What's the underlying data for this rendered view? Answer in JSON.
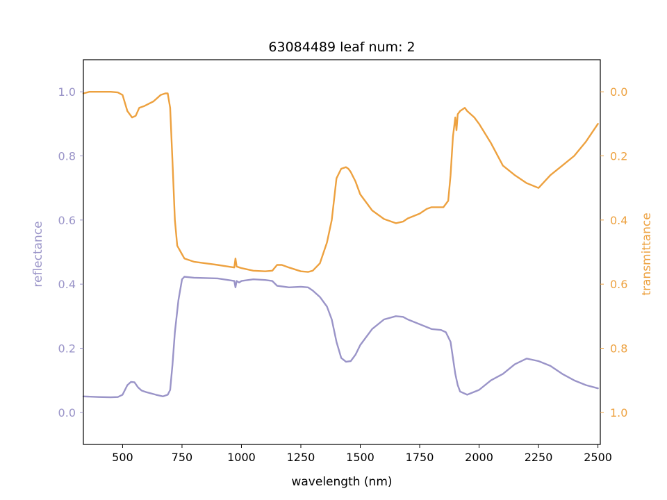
{
  "chart_data": {
    "type": "line",
    "title": "63084489 leaf num: 2",
    "xlabel": "wavelength (nm)",
    "ylabel_left": "reflectance",
    "ylabel_right": "transmittance",
    "xlim": [
      335,
      2510
    ],
    "xticks": [
      500,
      750,
      1000,
      1250,
      1500,
      1750,
      2000,
      2250,
      2500
    ],
    "ylim_left": [
      -0.1,
      1.1
    ],
    "yticks_left": [
      0.0,
      0.2,
      0.4,
      0.6,
      0.8,
      1.0
    ],
    "ylim_right_inverted": [
      1.1,
      -0.1
    ],
    "yticks_right": [
      0.0,
      0.2,
      0.4,
      0.6,
      0.8,
      1.0
    ],
    "grid": false,
    "colors": {
      "reflectance": "#9a94c8",
      "transmittance": "#eda13f",
      "axes": "#000000"
    },
    "series": [
      {
        "axis": "left",
        "x": [
          335,
          400,
          450,
          480,
          500,
          520,
          535,
          550,
          565,
          580,
          600,
          640,
          670,
          690,
          700,
          710,
          720,
          735,
          750,
          760,
          800,
          900,
          970,
          975,
          980,
          990,
          1000,
          1050,
          1100,
          1130,
          1150,
          1200,
          1250,
          1280,
          1300,
          1330,
          1360,
          1380,
          1400,
          1420,
          1440,
          1460,
          1480,
          1500,
          1550,
          1600,
          1650,
          1680,
          1700,
          1750,
          1800,
          1840,
          1860,
          1880,
          1890,
          1900,
          1910,
          1920,
          1950,
          2000,
          2050,
          2100,
          2150,
          2200,
          2250,
          2300,
          2350,
          2400,
          2450,
          2500
        ],
        "y": [
          0.05,
          0.048,
          0.047,
          0.048,
          0.055,
          0.085,
          0.095,
          0.094,
          0.078,
          0.068,
          0.063,
          0.055,
          0.05,
          0.055,
          0.07,
          0.15,
          0.25,
          0.35,
          0.415,
          0.423,
          0.42,
          0.418,
          0.41,
          0.39,
          0.41,
          0.405,
          0.41,
          0.415,
          0.413,
          0.41,
          0.395,
          0.39,
          0.392,
          0.39,
          0.38,
          0.36,
          0.33,
          0.29,
          0.22,
          0.17,
          0.158,
          0.16,
          0.18,
          0.21,
          0.26,
          0.29,
          0.3,
          0.298,
          0.29,
          0.275,
          0.26,
          0.257,
          0.25,
          0.22,
          0.17,
          0.12,
          0.085,
          0.065,
          0.055,
          0.07,
          0.1,
          0.12,
          0.15,
          0.168,
          0.16,
          0.145,
          0.12,
          0.1,
          0.085,
          0.075
        ]
      },
      {
        "axis": "right",
        "x": [
          335,
          360,
          400,
          450,
          480,
          500,
          520,
          540,
          555,
          570,
          590,
          630,
          660,
          680,
          690,
          700,
          710,
          720,
          730,
          745,
          760,
          800,
          900,
          970,
          975,
          980,
          1000,
          1050,
          1100,
          1130,
          1150,
          1170,
          1200,
          1250,
          1280,
          1300,
          1330,
          1360,
          1380,
          1400,
          1420,
          1440,
          1450,
          1460,
          1480,
          1500,
          1550,
          1600,
          1650,
          1680,
          1700,
          1750,
          1780,
          1800,
          1850,
          1870,
          1880,
          1890,
          1900,
          1905,
          1910,
          1920,
          1940,
          1950,
          1980,
          2000,
          2050,
          2100,
          2150,
          2200,
          2250,
          2300,
          2350,
          2400,
          2450,
          2500
        ],
        "y": [
          0.005,
          0.0,
          0.0,
          0.0,
          0.002,
          0.01,
          0.06,
          0.08,
          0.075,
          0.05,
          0.045,
          0.03,
          0.01,
          0.005,
          0.005,
          0.05,
          0.22,
          0.4,
          0.48,
          0.5,
          0.52,
          0.53,
          0.54,
          0.548,
          0.52,
          0.545,
          0.55,
          0.558,
          0.56,
          0.558,
          0.54,
          0.54,
          0.548,
          0.56,
          0.562,
          0.558,
          0.535,
          0.47,
          0.4,
          0.27,
          0.24,
          0.235,
          0.24,
          0.25,
          0.28,
          0.32,
          0.37,
          0.397,
          0.41,
          0.405,
          0.395,
          0.38,
          0.365,
          0.36,
          0.36,
          0.34,
          0.26,
          0.14,
          0.08,
          0.12,
          0.07,
          0.06,
          0.05,
          0.06,
          0.08,
          0.1,
          0.16,
          0.23,
          0.26,
          0.285,
          0.3,
          0.26,
          0.23,
          0.2,
          0.155,
          0.1
        ]
      }
    ]
  }
}
